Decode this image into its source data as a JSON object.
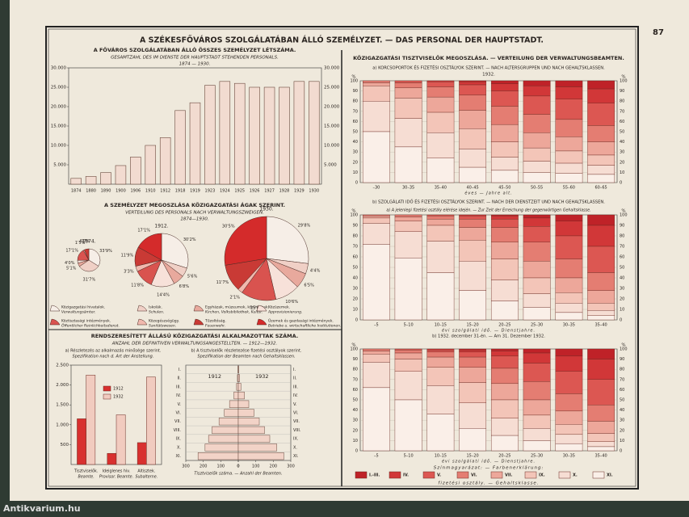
{
  "page": {
    "number": "87",
    "title": "A SZÉKESFŐVÁROS SZOLGÁLATÁBAN ÁLLÓ SZEMÉLYZET. — DAS PERSONAL DER HAUPTSTADT.",
    "right_title": "KÖZIGAZGATÁSI TISZTVISELŐK MEGOSZLÁSA. — VERTEILUNG DER VERWALTUNGSBEAMTEN.",
    "watermark": "Antikvarium.hu"
  },
  "legend": {
    "title": "Színmagyarázat: — Farbenerklärung:",
    "caption": "fizetési osztály. — Gehaltsklasse.",
    "names": [
      "I.-III.",
      "IV.",
      "V.",
      "VI.",
      "VII.",
      "IX.",
      "X.",
      "XI."
    ],
    "colors": [
      "#bf2228",
      "#d13738",
      "#dc5752",
      "#e47d72",
      "#eda79a",
      "#f3c5b8",
      "#f6ddd3",
      "#faefe8"
    ]
  },
  "chart_data": [
    {
      "type": "bar",
      "title": "A FŐVÁROS SZOLGÁLATÁBAN ÁLLÓ ÖSSZES SZEMÉLYZET LÉTSZÁMA.",
      "subtitle": "GESAMTZAHL DES IM DIENSTE DER HAUPTSTADT STEHENDEN PERSONALS.",
      "period": "1874 — 1930.",
      "categories": [
        "1874",
        "1880",
        "1890",
        "1900",
        "1906",
        "1910",
        "1912",
        "1918",
        "1919",
        "1923",
        "1924",
        "1925",
        "1926",
        "1927",
        "1928",
        "1929",
        "1930"
      ],
      "values": [
        1500,
        2000,
        3000,
        4800,
        7000,
        10000,
        12000,
        19000,
        21000,
        25500,
        26500,
        26000,
        25000,
        25000,
        25000,
        26500,
        26500
      ],
      "color": "#f2dbd0",
      "ylim": [
        0,
        30000
      ],
      "yticks": [
        {
          "value": 5000,
          "label": "5.000"
        },
        {
          "value": 10000,
          "label": "10.000"
        },
        {
          "value": 15000,
          "label": "15.000"
        },
        {
          "value": 20000,
          "label": "20.000"
        },
        {
          "value": 25000,
          "label": "25.000"
        },
        {
          "value": 30000,
          "label": "30.000"
        }
      ]
    },
    {
      "type": "pie",
      "title": "A SZEMÉLYZET MEGOSZLÁSA KÖZIGAZGATÁSI ÁGAK SZERINT.",
      "subtitle": "VERTEILUNG DES PERSONALS NACH VERWALTUNGSZWEIGEN.",
      "period": "1874—1930.",
      "categories": [
        [
          "Közigazgatási hivatalok.",
          "Verwaltungsämter."
        ],
        [
          "Iskolák.",
          "Schulen."
        ],
        [
          "Egyházak, múzeumok, könyvtárak.",
          "Kirchen, Volksbibliothek, Kultur."
        ],
        [
          "Közüzemek.",
          "Approvisionierung."
        ],
        [
          "Köztisztasági intézmények.",
          "Öffentlicher Reinlichkeitsdienst."
        ],
        [
          "Közegészségügy.",
          "Sanitätswesen."
        ],
        [
          "Tűzoltóság.",
          "Feuerwehr."
        ],
        [
          "Üzemek és gazdasági intézmények.",
          "Betriebe u. wirtschaftliche Institutionen."
        ]
      ],
      "colors": [
        "#f6eee7",
        "#f0d0c6",
        "#e8a99d",
        "#f7e1d9",
        "#d9534f",
        "#f1b9ae",
        "#c93a35",
        "#d42b2b"
      ],
      "pies": [
        {
          "name": "1874.",
          "values": [
            33.9,
            31.7,
            5.1,
            4.0,
            17.1,
            1.5,
            6.7,
            null
          ],
          "value_labels": [
            "33'9%",
            "31'7%",
            "5'1%",
            "4'0%",
            "17'1%",
            "1'5%",
            "6'7%",
            null
          ]
        },
        {
          "name": "1912.",
          "values": [
            30.2,
            5.6,
            6.8,
            14.4,
            11.8,
            3.3,
            11.9,
            17.1
          ],
          "value_labels": [
            "30'2%",
            "5'6%",
            "6'8%",
            "14'4%",
            "11'8%",
            "3'3%",
            "11'9%",
            "17'1%"
          ]
        },
        {
          "name": "1930.",
          "values": [
            29.8,
            4.4,
            6.5,
            10.6,
            15.0,
            2.1,
            11.7,
            30.5
          ],
          "value_labels": [
            "29'8%",
            "4'4%",
            "6'5%",
            "10'6%",
            "15'0%",
            "2'1%",
            "11'7%",
            "30'5%"
          ]
        }
      ]
    },
    {
      "type": "bar",
      "title": "RENDSZERESÍTETT ÁLLÁSÚ KÖZIGAZGATÁSI ALKALMAZOTTAK SZÁMA.",
      "subtitle": "ANZAHL DER DEFINITIVEN VERWALTUNGSANGESTELLTEN. — 1912—1932.",
      "note": [
        "a) Részletezés az alkalmazás minősége szerint.",
        "Spezifikation nach d. Art der Anstellung."
      ],
      "categories": [
        [
          "Tisztviselők.",
          "Beamte."
        ],
        [
          "Ideiglenes hiv.",
          "Provisor. Beamte."
        ],
        [
          "Altisztek.",
          "Subalterne."
        ]
      ],
      "series": [
        {
          "name": "1912",
          "color": "#d8302f",
          "values": [
            1150,
            280,
            550
          ]
        },
        {
          "name": "1932",
          "color": "#f1cbbf",
          "values": [
            2250,
            1250,
            2200
          ]
        }
      ],
      "ylim": [
        0,
        2500
      ],
      "yticks": [
        {
          "value": 500,
          "label": "500"
        },
        {
          "value": 1000,
          "label": "1.000"
        },
        {
          "value": 1500,
          "label": "1.500"
        },
        {
          "value": 2000,
          "label": "2.000"
        },
        {
          "value": 2500,
          "label": "2.500"
        }
      ]
    },
    {
      "type": "pyramid",
      "note": [
        "b) A tisztviselők részletezése fizetési osztályok szerint.",
        "Spezifikation der Beamten nach Gehaltsklassen."
      ],
      "xlabel": "Tisztviselők száma. — Anzahl der Beamten.",
      "categories": [
        "I.",
        "II.",
        "III.",
        "IV.",
        "V.",
        "VI.",
        "VII.",
        "VIII.",
        "IX.",
        "X.",
        "XI."
      ],
      "series": [
        {
          "name": "1912",
          "color": "#f2d3c7",
          "values": [
            2,
            5,
            10,
            25,
            50,
            80,
            110,
            150,
            170,
            190,
            230
          ]
        },
        {
          "name": "1932",
          "color": "#f2d3c7",
          "values": [
            3,
            8,
            15,
            35,
            60,
            90,
            120,
            150,
            180,
            220,
            260
          ]
        }
      ],
      "xlim": [
        0,
        300
      ],
      "xticks": [
        0,
        100,
        200,
        300
      ]
    },
    {
      "type": "stacked100",
      "title": "a) KORCSOPORTOK ÉS FIZETÉSI OSZTÁLYOK SZERINT. — NACH ALTERSGRUPPEN UND NACH GEHALTSKLASSEN.",
      "year": "1932.",
      "xlabel": "éves — Jahre alt.",
      "categories": [
        "–30",
        "30–35",
        "35–40",
        "40–45",
        "45–50",
        "50–55",
        "55–60",
        "60–65"
      ],
      "values": [
        [
          0,
          0,
          0,
          2,
          3,
          15,
          30,
          50
        ],
        [
          0,
          0,
          2,
          5,
          10,
          20,
          28,
          35
        ],
        [
          0,
          1,
          5,
          10,
          15,
          20,
          25,
          24
        ],
        [
          1,
          3,
          10,
          15,
          18,
          20,
          18,
          15
        ],
        [
          3,
          7,
          15,
          18,
          17,
          15,
          13,
          12
        ],
        [
          5,
          10,
          18,
          18,
          15,
          13,
          11,
          10
        ],
        [
          6,
          12,
          20,
          17,
          14,
          12,
          10,
          9
        ],
        [
          8,
          14,
          22,
          16,
          13,
          10,
          9,
          8
        ]
      ],
      "ylim": [
        0,
        100
      ],
      "yticks": [
        0,
        10,
        20,
        30,
        40,
        50,
        60,
        70,
        80,
        90,
        100
      ],
      "ylabel": "%"
    },
    {
      "type": "stacked100",
      "title": "b) SZOLGÁLATI IDŐ ÉS FIZETÉSI OSZTÁLYOK SZERINT. — NACH DER DIENSTZEIT UND NACH GEHALTSKLASSEN.",
      "note": "a) A jelenlegi fizetési osztály elérése idején. — Zur Zeit der Erreichung der gegenwärtigen Gehaltsklasse.",
      "xlabel": "évi szolgálati idő. — Dienstjahre.",
      "categories": [
        "–5",
        "5–10",
        "10–15",
        "15–20",
        "20–25",
        "25–30",
        "30–35",
        "35–40"
      ],
      "values": [
        [
          0,
          0,
          0,
          1,
          2,
          5,
          20,
          72
        ],
        [
          0,
          0,
          0,
          2,
          4,
          10,
          25,
          59
        ],
        [
          0,
          0,
          1,
          3,
          6,
          15,
          30,
          45
        ],
        [
          0,
          1,
          3,
          8,
          12,
          20,
          28,
          28
        ],
        [
          1,
          3,
          8,
          14,
          16,
          20,
          20,
          18
        ],
        [
          3,
          8,
          15,
          18,
          16,
          15,
          13,
          12
        ],
        [
          6,
          14,
          22,
          18,
          14,
          10,
          9,
          7
        ],
        [
          10,
          20,
          25,
          17,
          12,
          7,
          5,
          4
        ]
      ],
      "ylim": [
        0,
        100
      ],
      "yticks": [
        0,
        10,
        20,
        30,
        40,
        50,
        60,
        70,
        80,
        90,
        100
      ],
      "ylabel": "%"
    },
    {
      "type": "stacked100",
      "title": "b) 1932. december 31-én. — Am 31. Dezember 1932.",
      "xlabel": "évi szolgálati idő. — Dienstjahre.",
      "categories": [
        "–5",
        "5–10",
        "10–15",
        "15–20",
        "20–25",
        "25–30",
        "30–35",
        "35–40"
      ],
      "values": [
        [
          0,
          0,
          0,
          2,
          3,
          8,
          25,
          62
        ],
        [
          0,
          0,
          1,
          3,
          6,
          12,
          28,
          50
        ],
        [
          0,
          1,
          2,
          5,
          10,
          18,
          28,
          36
        ],
        [
          1,
          2,
          5,
          10,
          15,
          20,
          25,
          22
        ],
        [
          2,
          5,
          12,
          15,
          16,
          18,
          17,
          15
        ],
        [
          4,
          10,
          18,
          18,
          15,
          13,
          12,
          10
        ],
        [
          7,
          15,
          22,
          17,
          13,
          10,
          9,
          7
        ],
        [
          10,
          20,
          25,
          16,
          12,
          8,
          5,
          4
        ]
      ],
      "ylim": [
        0,
        100
      ],
      "yticks": [
        0,
        10,
        20,
        30,
        40,
        50,
        60,
        70,
        80,
        90,
        100
      ],
      "ylabel": "%"
    }
  ]
}
